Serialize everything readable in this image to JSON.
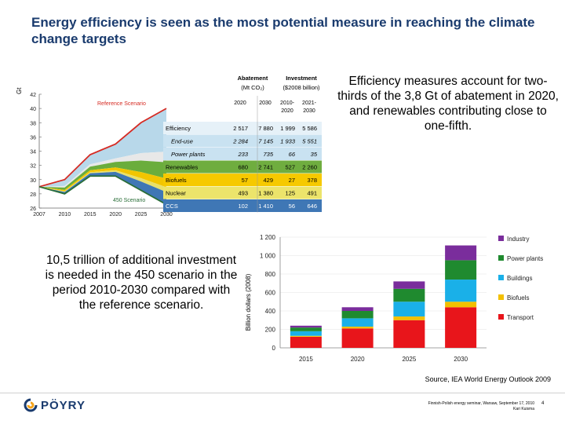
{
  "slide": {
    "title": "Energy efficiency is seen as the most potential measure in reaching the climate change targets",
    "text_right": "Efficiency measures account for two-thirds of the 3,8 Gt of abatement in 2020, and renewables contributing close to one-fifth.",
    "text_left": "10,5 trillion of additional investment is needed in the 450 scenario in the period 2010-2030 compared with the reference scenario.",
    "source": "Source, IEA World Energy Outlook 2009",
    "footer_meta_line1": "Finnish-Polish energy seminar, Warsaw, September 17, 2010",
    "footer_meta_line2": "Kari Kuisma",
    "page_number": "4",
    "logo_text": "PÖYRY"
  },
  "table": {
    "header_abatement": "Abatement",
    "header_abatement_unit": "(Mt CO₂)",
    "header_investment": "Investment",
    "header_investment_unit": "($2008 billion)",
    "col_2020": "2020",
    "col_2030": "2030",
    "col_2010_2020": "2010-\n2020",
    "col_2021_2030": "2021-\n2030",
    "rows": [
      {
        "label": "Efficiency",
        "values": [
          "2 517",
          "7 880",
          "1 999",
          "5 586"
        ]
      },
      {
        "label": "End-use",
        "values": [
          "2 284",
          "7 145",
          "1 933",
          "5 551"
        ]
      },
      {
        "label": "Power plants",
        "values": [
          "233",
          "735",
          "66",
          "35"
        ]
      },
      {
        "label": "Renewables",
        "values": [
          "680",
          "2 741",
          "527",
          "2 260"
        ]
      },
      {
        "label": "Biofuels",
        "values": [
          "57",
          "429",
          "27",
          "378"
        ]
      },
      {
        "label": "Nuclear",
        "values": [
          "493",
          "1 380",
          "125",
          "491"
        ]
      },
      {
        "label": "CCS",
        "values": [
          "102",
          "1 410",
          "56",
          "646"
        ]
      }
    ]
  },
  "chart_data": [
    {
      "type": "area",
      "ylabel": "Gt",
      "x": [
        "2007",
        "2010",
        "2015",
        "2020",
        "2025",
        "2030"
      ],
      "ylim": [
        26,
        42
      ],
      "yticks": [
        "26",
        "28",
        "30",
        "32",
        "34",
        "36",
        "38",
        "40",
        "42"
      ],
      "annotations": [
        "Reference Scenario",
        "450 Scenario"
      ],
      "series": [
        {
          "name": "Reference Scenario",
          "values": [
            29.0,
            30.0,
            33.5,
            35.0,
            38.0,
            40.0
          ]
        },
        {
          "name": "450 Scenario",
          "values": [
            29.0,
            28.0,
            30.5,
            30.5,
            28.5,
            26.5
          ]
        }
      ],
      "colors": {
        "efficiency": "#b8d8ea",
        "end_use": "#c8e3f2",
        "power_plants": "#e8e8e8",
        "renewables": "#6aad3c",
        "biofuels": "#f2c500",
        "nuclear": "#e9e069",
        "ccs": "#3f77b5",
        "reference": "#d62b23",
        "450": "#2a6e38"
      }
    },
    {
      "type": "bar",
      "ylabel": "Billion dollars (2008)",
      "categories": [
        "2015",
        "2020",
        "2025",
        "2030"
      ],
      "ylim": [
        0,
        1200
      ],
      "yticks": [
        "0",
        "200",
        "400",
        "600",
        "800",
        "1 000",
        "1 200"
      ],
      "series": [
        {
          "name": "Transport",
          "values": [
            120,
            210,
            300,
            440
          ]
        },
        {
          "name": "Biofuels",
          "values": [
            10,
            20,
            40,
            60
          ]
        },
        {
          "name": "Buildings",
          "values": [
            50,
            90,
            160,
            240
          ]
        },
        {
          "name": "Power plants",
          "values": [
            40,
            80,
            140,
            210
          ]
        },
        {
          "name": "Industry",
          "values": [
            20,
            40,
            80,
            160
          ]
        }
      ],
      "colors": [
        "#e8151b",
        "#f3c000",
        "#1ab0e8",
        "#1f8a2f",
        "#7a2d9c"
      ],
      "legend": "right"
    }
  ]
}
